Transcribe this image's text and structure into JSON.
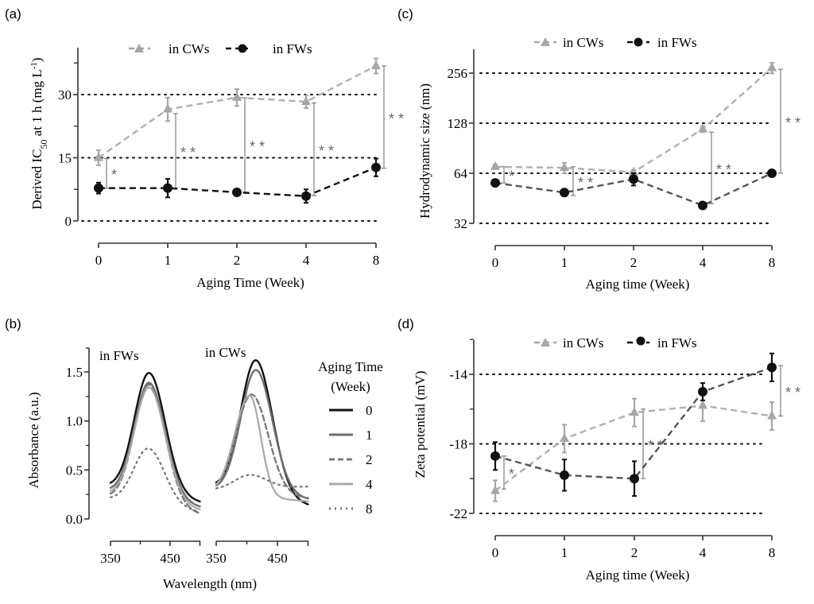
{
  "chart_data": [
    {
      "id": "a",
      "panel_label": "(a)",
      "type": "line",
      "xlabel": "Aging Time (Week)",
      "ylabel": "Derived IC50 at 1 h (mg L-1)",
      "ylabel_parts": {
        "pre": "Derived IC",
        "sub": "50",
        "mid": " at 1 h (mg L",
        "sup": "-1",
        "post": ")"
      },
      "categories": [
        "0",
        "1",
        "2",
        "4",
        "8"
      ],
      "yscale": "linear",
      "ylim": [
        0,
        40
      ],
      "yticks": [
        0,
        15,
        30
      ],
      "ytick_labels": [
        "0",
        "15",
        "30"
      ],
      "minor_yticks": [
        7.5,
        22.5,
        37.5
      ],
      "gridlines": [
        0,
        15,
        30
      ],
      "legend": [
        "in CWs",
        "in FWs"
      ],
      "series": [
        {
          "name": "in CWs",
          "marker": "triangle",
          "color": "#a6a6a6",
          "values": [
            15.0,
            26.5,
            29.3,
            28.3,
            36.8
          ],
          "errors": [
            1.8,
            2.8,
            2.0,
            1.5,
            1.8
          ]
        },
        {
          "name": "in FWs",
          "marker": "circle",
          "color": "#111111",
          "values": [
            7.8,
            7.8,
            6.8,
            5.9,
            12.7
          ],
          "errors": [
            1.3,
            2.2,
            0.5,
            1.6,
            2.1
          ]
        }
      ],
      "significance": [
        {
          "x": "0",
          "low": 7.8,
          "high": 14.8,
          "label": "*"
        },
        {
          "x": "1",
          "low": 7.8,
          "high": 25.5,
          "label": "**"
        },
        {
          "x": "2",
          "low": 6.8,
          "high": 29.2,
          "label": "**"
        },
        {
          "x": "4",
          "low": 6.0,
          "high": 28.0,
          "label": "**"
        },
        {
          "x": "8",
          "low": 12.5,
          "high": 36.8,
          "label": "**"
        }
      ]
    },
    {
      "id": "b",
      "panel_label": "(b)",
      "type": "line",
      "xlabel": "Wavelength (nm)",
      "ylabel": "Absorbance (a.u.)",
      "ylim": [
        0,
        1.75
      ],
      "yticks": [
        0.0,
        0.5,
        1.0,
        1.5
      ],
      "ytick_labels": [
        "0.0",
        "0.5",
        "1.0",
        "1.5"
      ],
      "xlim": [
        350,
        500
      ],
      "xticks": [
        350,
        450
      ],
      "xtick_labels": [
        "350",
        "450"
      ],
      "subplots": [
        {
          "title": "in FWs",
          "series": [
            {
              "name": "0",
              "peak_nm": 415,
              "peak": 1.49,
              "start": 0.33,
              "end": 0.17
            },
            {
              "name": "1",
              "peak_nm": 415,
              "peak": 1.39,
              "start": 0.28,
              "end": 0.12
            },
            {
              "name": "2",
              "peak_nm": 415,
              "peak": 1.37,
              "start": 0.22,
              "end": 0.05
            },
            {
              "name": "4",
              "peak_nm": 415,
              "peak": 1.34,
              "start": 0.25,
              "end": 0.09
            },
            {
              "name": "8",
              "peak_nm": 414,
              "peak": 0.72,
              "start": 0.2,
              "end": 0.07
            }
          ]
        },
        {
          "title": "in CWs",
          "series": [
            {
              "name": "0",
              "peak_nm": 415,
              "peak": 1.62,
              "start": 0.33,
              "end": 0.14
            },
            {
              "name": "1",
              "peak_nm": 415,
              "peak": 1.52,
              "start": 0.3,
              "end": 0.2
            },
            {
              "name": "2",
              "peak_nm": 408,
              "peak": 1.27,
              "start": 0.29,
              "end": 0.21
            },
            {
              "name": "4",
              "peak_nm": 405,
              "peak": 1.26,
              "start": 0.26,
              "end": 0.18
            },
            {
              "name": "8",
              "peak_nm": 405,
              "peak": 0.45,
              "start": 0.3,
              "end": 0.33
            }
          ]
        }
      ],
      "legend_title": [
        "Aging Time",
        "(Week)"
      ],
      "legend": [
        {
          "label": "0",
          "style": "solid",
          "color": "#111111"
        },
        {
          "label": "1",
          "style": "solid",
          "color": "#6e6e6e"
        },
        {
          "label": "2",
          "style": "dashed",
          "color": "#7a7a7a"
        },
        {
          "label": "4",
          "style": "solid",
          "color": "#a8a8a8"
        },
        {
          "label": "8",
          "style": "dotted",
          "color": "#777777"
        }
      ]
    },
    {
      "id": "c",
      "panel_label": "(c)",
      "type": "line",
      "xlabel": "Aging time (Week)",
      "ylabel": "Hydrodynamic size (nm)",
      "categories": [
        "0",
        "1",
        "2",
        "4",
        "8"
      ],
      "yscale": "log2",
      "ylim": [
        32,
        340
      ],
      "yticks": [
        32,
        64,
        128,
        256
      ],
      "ytick_labels": [
        "32",
        "64",
        "128",
        "256"
      ],
      "gridlines": [
        32,
        64,
        128,
        256
      ],
      "legend": [
        "in CWs",
        "in FWs"
      ],
      "series": [
        {
          "name": "in CWs",
          "marker": "triangle",
          "color": "#a6a6a6",
          "values": [
            70,
            69,
            65,
            118,
            275
          ],
          "errors": [
            2,
            5,
            2,
            5,
            20
          ]
        },
        {
          "name": "in FWs",
          "marker": "circle",
          "color": "#111111",
          "values": [
            56,
            49,
            59,
            41,
            64
          ],
          "errors": [
            1,
            1,
            5,
            1,
            1
          ]
        }
      ],
      "significance": [
        {
          "x": "0",
          "low": 56,
          "high": 70,
          "label": "*"
        },
        {
          "x": "1",
          "low": 47,
          "high": 70,
          "label": "**"
        },
        {
          "x": "4",
          "low": 42,
          "high": 113,
          "label": "**"
        },
        {
          "x": "8",
          "low": 64,
          "high": 270,
          "label": "**"
        }
      ]
    },
    {
      "id": "d",
      "panel_label": "(d)",
      "type": "line",
      "xlabel": "Aging time (Week)",
      "ylabel": "Zeta potential (mV)",
      "categories": [
        "0",
        "1",
        "2",
        "4",
        "8"
      ],
      "yscale": "linear",
      "ylim": [
        -22,
        -12
      ],
      "yticks": [
        -22,
        -18,
        -14
      ],
      "ytick_labels": [
        "-22",
        "-18",
        "-14"
      ],
      "minor_yticks": [
        -20,
        -16,
        -12
      ],
      "gridlines": [
        -22,
        -18,
        -14
      ],
      "legend": [
        "in CWs",
        "in FWs"
      ],
      "series": [
        {
          "name": "in CWs",
          "marker": "triangle",
          "color": "#a6a6a6",
          "values": [
            -20.7,
            -17.7,
            -16.2,
            -15.8,
            -16.4
          ],
          "errors": [
            0.6,
            0.8,
            0.8,
            0.9,
            0.8
          ]
        },
        {
          "name": "in FWs",
          "marker": "circle",
          "color": "#111111",
          "values": [
            -18.7,
            -19.8,
            -20.0,
            -15.0,
            -13.6
          ],
          "errors": [
            0.8,
            0.9,
            1.0,
            0.5,
            0.8
          ]
        }
      ],
      "significance": [
        {
          "x": "0",
          "low": -20.6,
          "high": -18.7,
          "label": "*"
        },
        {
          "x": "2",
          "low": -20.0,
          "high": -16.0,
          "label": "**"
        },
        {
          "x": "8",
          "low": -16.4,
          "high": -13.5,
          "label": "**"
        }
      ]
    }
  ]
}
